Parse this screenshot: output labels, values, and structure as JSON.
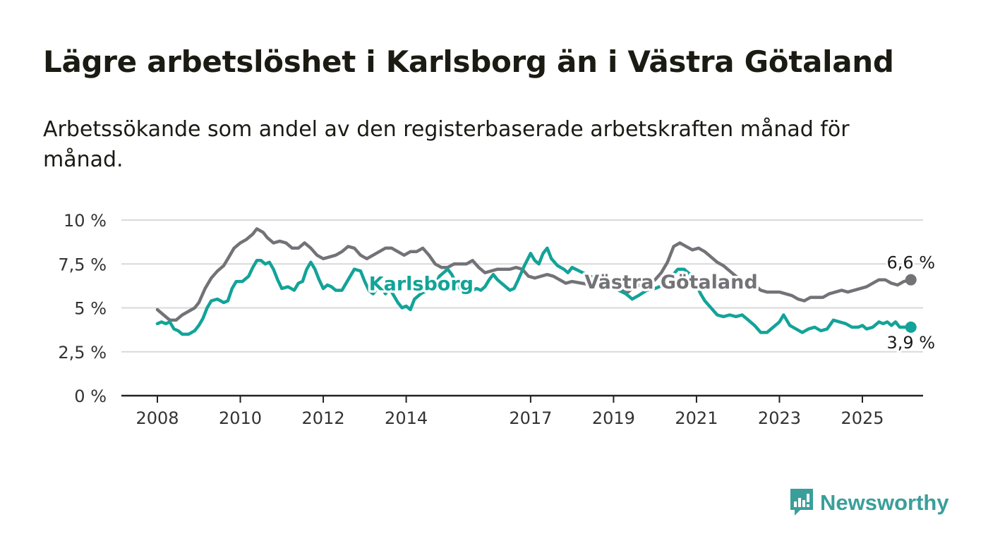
{
  "title": "Lägre arbetslöshet i Karlsborg än i Västra Götaland",
  "subtitle": "Arbetssökande som andel av den registerbaserade arbetskraften månad för månad.",
  "brand": {
    "name": "Newsworthy",
    "color": "#3a9f9a"
  },
  "chart_data": {
    "type": "line",
    "title": "Lägre arbetslöshet i Karlsborg än i Västra Götaland",
    "subtitle": "Arbetssökande som andel av den registerbaserade arbetskraften månad för månad.",
    "xlabel": "",
    "ylabel": "",
    "x_ticks": [
      2008,
      2010,
      2012,
      2014,
      2017,
      2019,
      2021,
      2023,
      2025
    ],
    "y_ticks": [
      "0 %",
      "2,5 %",
      "5 %",
      "7,5 %",
      "10 %"
    ],
    "y_tick_values": [
      0,
      2.5,
      5,
      7.5,
      10
    ],
    "ylim": [
      0,
      10
    ],
    "xlim": [
      2007.2,
      2026.5
    ],
    "grid": true,
    "legend": "inline labels",
    "series": [
      {
        "name": "Karlsborg",
        "color": "#13a398",
        "end_label": "3,9 %",
        "points": [
          [
            2008.0,
            4.1
          ],
          [
            2008.1,
            4.2
          ],
          [
            2008.2,
            4.1
          ],
          [
            2008.3,
            4.2
          ],
          [
            2008.4,
            3.8
          ],
          [
            2008.5,
            3.7
          ],
          [
            2008.6,
            3.5
          ],
          [
            2008.75,
            3.5
          ],
          [
            2008.9,
            3.7
          ],
          [
            2009.0,
            4.0
          ],
          [
            2009.1,
            4.4
          ],
          [
            2009.2,
            5.0
          ],
          [
            2009.3,
            5.4
          ],
          [
            2009.45,
            5.5
          ],
          [
            2009.6,
            5.3
          ],
          [
            2009.7,
            5.4
          ],
          [
            2009.8,
            6.1
          ],
          [
            2009.9,
            6.5
          ],
          [
            2010.05,
            6.5
          ],
          [
            2010.2,
            6.8
          ],
          [
            2010.3,
            7.3
          ],
          [
            2010.4,
            7.7
          ],
          [
            2010.5,
            7.7
          ],
          [
            2010.6,
            7.5
          ],
          [
            2010.7,
            7.6
          ],
          [
            2010.8,
            7.2
          ],
          [
            2010.9,
            6.6
          ],
          [
            2011.0,
            6.1
          ],
          [
            2011.15,
            6.2
          ],
          [
            2011.3,
            6.0
          ],
          [
            2011.4,
            6.4
          ],
          [
            2011.5,
            6.5
          ],
          [
            2011.6,
            7.2
          ],
          [
            2011.7,
            7.6
          ],
          [
            2011.8,
            7.2
          ],
          [
            2011.9,
            6.6
          ],
          [
            2012.0,
            6.1
          ],
          [
            2012.1,
            6.3
          ],
          [
            2012.2,
            6.2
          ],
          [
            2012.3,
            6.0
          ],
          [
            2012.45,
            6.0
          ],
          [
            2012.6,
            6.6
          ],
          [
            2012.75,
            7.2
          ],
          [
            2012.9,
            7.1
          ],
          [
            2013.0,
            6.5
          ],
          [
            2013.1,
            6.0
          ],
          [
            2013.2,
            5.8
          ],
          [
            2013.3,
            6.1
          ],
          [
            2013.4,
            6.2
          ],
          [
            2013.5,
            5.8
          ],
          [
            2013.6,
            6.1
          ],
          [
            2013.7,
            5.7
          ],
          [
            2013.8,
            5.3
          ],
          [
            2013.9,
            5.0
          ],
          [
            2014.0,
            5.1
          ],
          [
            2014.1,
            4.9
          ],
          [
            2014.2,
            5.5
          ],
          [
            2014.35,
            5.8
          ],
          [
            2014.5,
            6.0
          ],
          [
            2014.6,
            6.0
          ],
          [
            2014.7,
            6.3
          ],
          [
            2014.8,
            6.8
          ],
          [
            2015.0,
            7.2
          ],
          [
            2015.1,
            6.9
          ],
          [
            2015.2,
            6.4
          ],
          [
            2015.3,
            6.1
          ],
          [
            2015.45,
            6.0
          ],
          [
            2015.6,
            6.0
          ],
          [
            2015.7,
            6.1
          ],
          [
            2015.8,
            6.0
          ],
          [
            2015.9,
            6.2
          ],
          [
            2016.0,
            6.6
          ],
          [
            2016.1,
            6.9
          ],
          [
            2016.2,
            6.6
          ],
          [
            2016.35,
            6.3
          ],
          [
            2016.5,
            6.0
          ],
          [
            2016.6,
            6.1
          ],
          [
            2016.7,
            6.6
          ],
          [
            2016.85,
            7.4
          ],
          [
            2017.0,
            8.1
          ],
          [
            2017.1,
            7.7
          ],
          [
            2017.2,
            7.5
          ],
          [
            2017.3,
            8.1
          ],
          [
            2017.4,
            8.4
          ],
          [
            2017.5,
            7.8
          ],
          [
            2017.65,
            7.4
          ],
          [
            2017.8,
            7.2
          ],
          [
            2017.9,
            7.0
          ],
          [
            2018.0,
            7.3
          ],
          [
            2019.3,
            5.8
          ],
          [
            2019.45,
            5.5
          ],
          [
            2019.6,
            5.7
          ],
          [
            2019.8,
            6.0
          ],
          [
            2020.0,
            6.1
          ],
          [
            2020.2,
            6.3
          ],
          [
            2020.4,
            6.8
          ],
          [
            2020.55,
            7.2
          ],
          [
            2020.7,
            7.2
          ],
          [
            2020.85,
            6.9
          ],
          [
            2021.0,
            6.3
          ],
          [
            2021.1,
            5.8
          ],
          [
            2021.2,
            5.4
          ],
          [
            2021.35,
            5.0
          ],
          [
            2021.5,
            4.6
          ],
          [
            2021.65,
            4.5
          ],
          [
            2021.8,
            4.6
          ],
          [
            2021.95,
            4.5
          ],
          [
            2022.1,
            4.6
          ],
          [
            2022.25,
            4.3
          ],
          [
            2022.4,
            4.0
          ],
          [
            2022.55,
            3.6
          ],
          [
            2022.7,
            3.6
          ],
          [
            2022.85,
            3.9
          ],
          [
            2023.0,
            4.2
          ],
          [
            2023.1,
            4.6
          ],
          [
            2023.25,
            4.0
          ],
          [
            2023.4,
            3.8
          ],
          [
            2023.55,
            3.6
          ],
          [
            2023.7,
            3.8
          ],
          [
            2023.85,
            3.9
          ],
          [
            2024.0,
            3.7
          ],
          [
            2024.15,
            3.8
          ],
          [
            2024.3,
            4.3
          ],
          [
            2024.45,
            4.2
          ],
          [
            2024.6,
            4.1
          ],
          [
            2024.75,
            3.9
          ],
          [
            2024.9,
            3.9
          ],
          [
            2025.0,
            4.0
          ],
          [
            2025.1,
            3.8
          ],
          [
            2025.25,
            3.9
          ],
          [
            2025.4,
            4.2
          ],
          [
            2025.5,
            4.1
          ],
          [
            2025.6,
            4.2
          ],
          [
            2025.7,
            4.0
          ],
          [
            2025.8,
            4.2
          ],
          [
            2025.9,
            3.9
          ],
          [
            2026.05,
            3.9
          ],
          [
            2026.17,
            3.9
          ]
        ],
        "labels": [
          {
            "text": "Karlsborg",
            "x": 2013.1,
            "y": 6.4
          }
        ]
      },
      {
        "name": "Västra Götaland",
        "color": "#737277",
        "end_label": "6,6 %",
        "points": [
          [
            2008.0,
            4.9
          ],
          [
            2008.15,
            4.6
          ],
          [
            2008.3,
            4.3
          ],
          [
            2008.45,
            4.3
          ],
          [
            2008.6,
            4.6
          ],
          [
            2008.75,
            4.8
          ],
          [
            2008.9,
            5.0
          ],
          [
            2009.0,
            5.3
          ],
          [
            2009.15,
            6.1
          ],
          [
            2009.3,
            6.7
          ],
          [
            2009.45,
            7.1
          ],
          [
            2009.6,
            7.4
          ],
          [
            2009.7,
            7.8
          ],
          [
            2009.85,
            8.4
          ],
          [
            2010.0,
            8.7
          ],
          [
            2010.15,
            8.9
          ],
          [
            2010.3,
            9.2
          ],
          [
            2010.4,
            9.5
          ],
          [
            2010.55,
            9.3
          ],
          [
            2010.65,
            9.0
          ],
          [
            2010.8,
            8.7
          ],
          [
            2010.95,
            8.8
          ],
          [
            2011.1,
            8.7
          ],
          [
            2011.25,
            8.4
          ],
          [
            2011.4,
            8.4
          ],
          [
            2011.55,
            8.7
          ],
          [
            2011.7,
            8.4
          ],
          [
            2011.85,
            8.0
          ],
          [
            2012.0,
            7.8
          ],
          [
            2012.15,
            7.9
          ],
          [
            2012.3,
            8.0
          ],
          [
            2012.45,
            8.2
          ],
          [
            2012.6,
            8.5
          ],
          [
            2012.75,
            8.4
          ],
          [
            2012.9,
            8.0
          ],
          [
            2013.05,
            7.8
          ],
          [
            2013.2,
            8.0
          ],
          [
            2013.35,
            8.2
          ],
          [
            2013.5,
            8.4
          ],
          [
            2013.65,
            8.4
          ],
          [
            2013.8,
            8.2
          ],
          [
            2013.95,
            8.0
          ],
          [
            2014.1,
            8.2
          ],
          [
            2014.25,
            8.2
          ],
          [
            2014.4,
            8.4
          ],
          [
            2014.55,
            8.0
          ],
          [
            2014.7,
            7.5
          ],
          [
            2014.85,
            7.3
          ],
          [
            2015.0,
            7.3
          ],
          [
            2015.15,
            7.5
          ],
          [
            2015.3,
            7.5
          ],
          [
            2015.45,
            7.5
          ],
          [
            2015.6,
            7.7
          ],
          [
            2015.75,
            7.3
          ],
          [
            2015.9,
            7.0
          ],
          [
            2016.05,
            7.1
          ],
          [
            2016.2,
            7.2
          ],
          [
            2016.35,
            7.2
          ],
          [
            2016.5,
            7.2
          ],
          [
            2016.65,
            7.3
          ],
          [
            2016.8,
            7.2
          ],
          [
            2016.95,
            6.8
          ],
          [
            2017.1,
            6.7
          ],
          [
            2017.25,
            6.8
          ],
          [
            2017.4,
            6.9
          ],
          [
            2017.55,
            6.8
          ],
          [
            2017.7,
            6.6
          ],
          [
            2017.85,
            6.4
          ],
          [
            2018.0,
            6.5
          ],
          [
            2019.2,
            6.0
          ],
          [
            2019.35,
            5.9
          ],
          [
            2019.5,
            6.2
          ],
          [
            2019.65,
            6.3
          ],
          [
            2019.8,
            6.2
          ],
          [
            2020.0,
            6.6
          ],
          [
            2020.15,
            7.0
          ],
          [
            2020.3,
            7.6
          ],
          [
            2020.45,
            8.5
          ],
          [
            2020.6,
            8.7
          ],
          [
            2020.75,
            8.5
          ],
          [
            2020.9,
            8.3
          ],
          [
            2021.05,
            8.4
          ],
          [
            2021.2,
            8.2
          ],
          [
            2021.35,
            7.9
          ],
          [
            2021.5,
            7.6
          ],
          [
            2021.65,
            7.4
          ],
          [
            2021.8,
            7.1
          ],
          [
            2021.95,
            6.8
          ],
          [
            2022.1,
            6.6
          ],
          [
            2022.25,
            6.5
          ],
          [
            2022.4,
            6.3
          ],
          [
            2022.55,
            6.0
          ],
          [
            2022.7,
            5.9
          ],
          [
            2022.85,
            5.9
          ],
          [
            2023.0,
            5.9
          ],
          [
            2023.15,
            5.8
          ],
          [
            2023.3,
            5.7
          ],
          [
            2023.45,
            5.5
          ],
          [
            2023.6,
            5.4
          ],
          [
            2023.75,
            5.6
          ],
          [
            2023.9,
            5.6
          ],
          [
            2024.05,
            5.6
          ],
          [
            2024.2,
            5.8
          ],
          [
            2024.35,
            5.9
          ],
          [
            2024.5,
            6.0
          ],
          [
            2024.65,
            5.9
          ],
          [
            2024.8,
            6.0
          ],
          [
            2024.95,
            6.1
          ],
          [
            2025.1,
            6.2
          ],
          [
            2025.25,
            6.4
          ],
          [
            2025.4,
            6.6
          ],
          [
            2025.55,
            6.6
          ],
          [
            2025.7,
            6.4
          ],
          [
            2025.85,
            6.3
          ],
          [
            2026.0,
            6.5
          ],
          [
            2026.17,
            6.6
          ]
        ],
        "labels": [
          {
            "text": "Västra Götaland",
            "x": 2018.3,
            "y": 6.5
          }
        ]
      }
    ]
  }
}
